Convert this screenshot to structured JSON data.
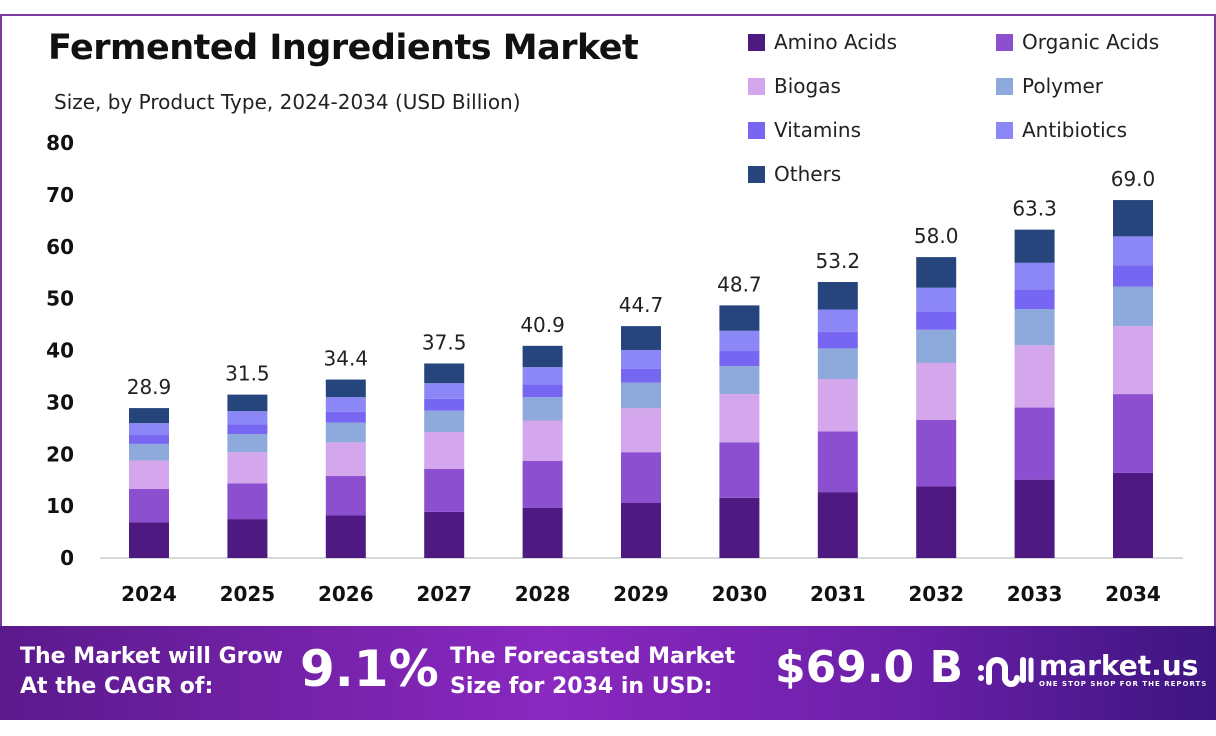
{
  "chart_data": {
    "type": "bar",
    "stacked": true,
    "title": "Fermented Ingredients Market",
    "subtitle": "Size, by Product Type, 2024-2034 (USD Billion)",
    "categories": [
      "2024",
      "2025",
      "2026",
      "2027",
      "2028",
      "2029",
      "2030",
      "2031",
      "2032",
      "2033",
      "2034"
    ],
    "totals": [
      "28.9",
      "31.5",
      "34.4",
      "37.5",
      "40.9",
      "44.7",
      "48.7",
      "53.2",
      "58.0",
      "63.3",
      "69.0"
    ],
    "ylim": [
      0,
      80
    ],
    "yticks": [
      "0",
      "10",
      "20",
      "30",
      "40",
      "50",
      "60",
      "70",
      "80"
    ],
    "legend_position": "top-right",
    "grid": false,
    "series": [
      {
        "name": "Amino Acids",
        "color": "#4e1a82",
        "values": [
          6.9,
          7.5,
          8.2,
          8.9,
          9.7,
          10.6,
          11.6,
          12.7,
          13.8,
          15.1,
          16.4
        ]
      },
      {
        "name": "Organic Acids",
        "color": "#8b4fcf",
        "values": [
          6.4,
          6.9,
          7.6,
          8.3,
          9.0,
          9.8,
          10.7,
          11.7,
          12.8,
          13.9,
          15.2
        ]
      },
      {
        "name": "Biogas",
        "color": "#d4a6ec",
        "values": [
          5.5,
          6.0,
          6.5,
          7.1,
          7.8,
          8.5,
          9.3,
          10.1,
          11.0,
          12.0,
          13.1
        ]
      },
      {
        "name": "Polymer",
        "color": "#8ea9dc",
        "values": [
          3.2,
          3.5,
          3.8,
          4.1,
          4.5,
          4.9,
          5.4,
          5.9,
          6.4,
          7.0,
          7.6
        ]
      },
      {
        "name": "Vitamins",
        "color": "#7766f2",
        "values": [
          1.7,
          1.9,
          2.1,
          2.3,
          2.5,
          2.7,
          2.9,
          3.2,
          3.5,
          3.8,
          4.1
        ]
      },
      {
        "name": "Antibiotics",
        "color": "#8c87f7",
        "values": [
          2.3,
          2.5,
          2.8,
          3.0,
          3.3,
          3.6,
          3.9,
          4.3,
          4.6,
          5.1,
          5.6
        ]
      },
      {
        "name": "Others",
        "color": "#26457d",
        "values": [
          2.9,
          3.2,
          3.4,
          3.8,
          4.1,
          4.6,
          4.9,
          5.3,
          5.9,
          6.4,
          7.0
        ]
      }
    ]
  },
  "footer": {
    "cagr_label_1": "The Market will Grow",
    "cagr_label_2": "At the CAGR of:",
    "cagr_value": "9.1%",
    "forecast_label_1": "The Forecasted Market",
    "forecast_label_2": "Size for 2034 in USD:",
    "forecast_value": "$69.0 B",
    "logo_text": "market.us",
    "logo_tagline": "ONE STOP SHOP FOR THE REPORTS"
  }
}
